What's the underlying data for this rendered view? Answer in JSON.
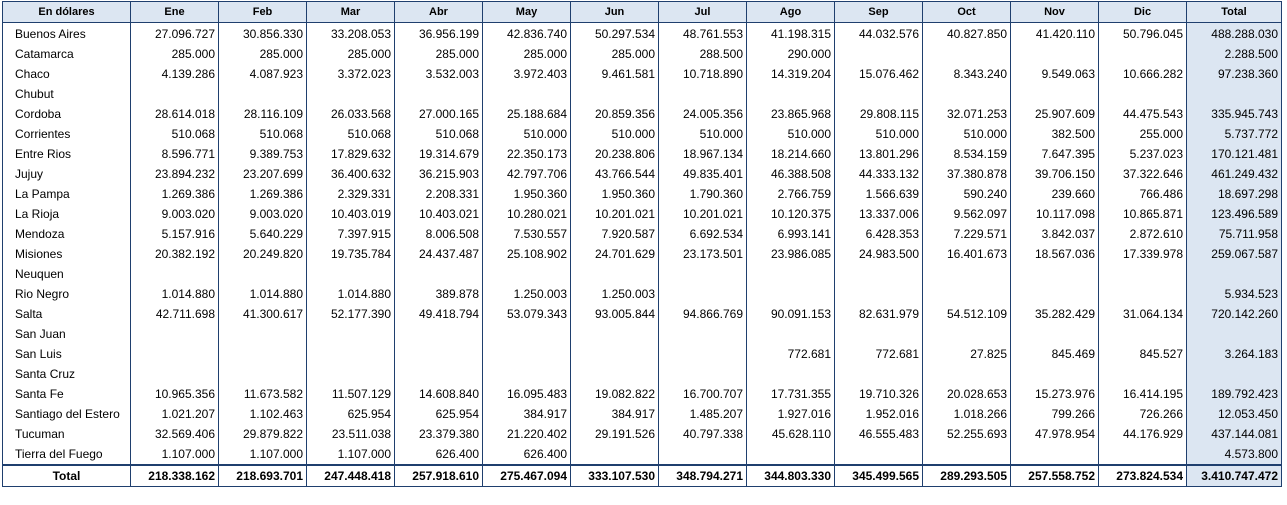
{
  "table": {
    "header_label": "En dólares",
    "months": [
      "Ene",
      "Feb",
      "Mar",
      "Abr",
      "May",
      "Jun",
      "Jul",
      "Ago",
      "Sep",
      "Oct",
      "Nov",
      "Dic"
    ],
    "total_label": "Total",
    "rows": [
      {
        "province": "Buenos Aires",
        "values": [
          "27.096.727",
          "30.856.330",
          "33.208.053",
          "36.956.199",
          "42.836.740",
          "50.297.534",
          "48.761.553",
          "41.198.315",
          "44.032.576",
          "40.827.850",
          "41.420.110",
          "50.796.045"
        ],
        "total": "488.288.030"
      },
      {
        "province": "Catamarca",
        "values": [
          "285.000",
          "285.000",
          "285.000",
          "285.000",
          "285.000",
          "285.000",
          "288.500",
          "290.000",
          "",
          "",
          "",
          ""
        ],
        "total": "2.288.500"
      },
      {
        "province": "Chaco",
        "values": [
          "4.139.286",
          "4.087.923",
          "3.372.023",
          "3.532.003",
          "3.972.403",
          "9.461.581",
          "10.718.890",
          "14.319.204",
          "15.076.462",
          "8.343.240",
          "9.549.063",
          "10.666.282"
        ],
        "total": "97.238.360"
      },
      {
        "province": "Chubut",
        "values": [
          "",
          "",
          "",
          "",
          "",
          "",
          "",
          "",
          "",
          "",
          "",
          ""
        ],
        "total": ""
      },
      {
        "province": "Cordoba",
        "values": [
          "28.614.018",
          "28.116.109",
          "26.033.568",
          "27.000.165",
          "25.188.684",
          "20.859.356",
          "24.005.356",
          "23.865.968",
          "29.808.115",
          "32.071.253",
          "25.907.609",
          "44.475.543"
        ],
        "total": "335.945.743"
      },
      {
        "province": "Corrientes",
        "values": [
          "510.068",
          "510.068",
          "510.068",
          "510.068",
          "510.000",
          "510.000",
          "510.000",
          "510.000",
          "510.000",
          "510.000",
          "382.500",
          "255.000"
        ],
        "total": "5.737.772"
      },
      {
        "province": "Entre Rios",
        "values": [
          "8.596.771",
          "9.389.753",
          "17.829.632",
          "19.314.679",
          "22.350.173",
          "20.238.806",
          "18.967.134",
          "18.214.660",
          "13.801.296",
          "8.534.159",
          "7.647.395",
          "5.237.023"
        ],
        "total": "170.121.481"
      },
      {
        "province": "Jujuy",
        "values": [
          "23.894.232",
          "23.207.699",
          "36.400.632",
          "36.215.903",
          "42.797.706",
          "43.766.544",
          "49.835.401",
          "46.388.508",
          "44.333.132",
          "37.380.878",
          "39.706.150",
          "37.322.646"
        ],
        "total": "461.249.432"
      },
      {
        "province": "La Pampa",
        "values": [
          "1.269.386",
          "1.269.386",
          "2.329.331",
          "2.208.331",
          "1.950.360",
          "1.950.360",
          "1.790.360",
          "2.766.759",
          "1.566.639",
          "590.240",
          "239.660",
          "766.486"
        ],
        "total": "18.697.298"
      },
      {
        "province": "La Rioja",
        "values": [
          "9.003.020",
          "9.003.020",
          "10.403.019",
          "10.403.021",
          "10.280.021",
          "10.201.021",
          "10.201.021",
          "10.120.375",
          "13.337.006",
          "9.562.097",
          "10.117.098",
          "10.865.871"
        ],
        "total": "123.496.589"
      },
      {
        "province": "Mendoza",
        "values": [
          "5.157.916",
          "5.640.229",
          "7.397.915",
          "8.006.508",
          "7.530.557",
          "7.920.587",
          "6.692.534",
          "6.993.141",
          "6.428.353",
          "7.229.571",
          "3.842.037",
          "2.872.610"
        ],
        "total": "75.711.958"
      },
      {
        "province": "Misiones",
        "values": [
          "20.382.192",
          "20.249.820",
          "19.735.784",
          "24.437.487",
          "25.108.902",
          "24.701.629",
          "23.173.501",
          "23.986.085",
          "24.983.500",
          "16.401.673",
          "18.567.036",
          "17.339.978"
        ],
        "total": "259.067.587"
      },
      {
        "province": "Neuquen",
        "values": [
          "",
          "",
          "",
          "",
          "",
          "",
          "",
          "",
          "",
          "",
          "",
          ""
        ],
        "total": ""
      },
      {
        "province": "Rio Negro",
        "values": [
          "1.014.880",
          "1.014.880",
          "1.014.880",
          "389.878",
          "1.250.003",
          "1.250.003",
          "",
          "",
          "",
          "",
          "",
          ""
        ],
        "total": "5.934.523"
      },
      {
        "province": "Salta",
        "values": [
          "42.711.698",
          "41.300.617",
          "52.177.390",
          "49.418.794",
          "53.079.343",
          "93.005.844",
          "94.866.769",
          "90.091.153",
          "82.631.979",
          "54.512.109",
          "35.282.429",
          "31.064.134"
        ],
        "total": "720.142.260"
      },
      {
        "province": "San Juan",
        "values": [
          "",
          "",
          "",
          "",
          "",
          "",
          "",
          "",
          "",
          "",
          "",
          ""
        ],
        "total": ""
      },
      {
        "province": "San Luis",
        "values": [
          "",
          "",
          "",
          "",
          "",
          "",
          "",
          "772.681",
          "772.681",
          "27.825",
          "845.469",
          "845.527"
        ],
        "total": "3.264.183"
      },
      {
        "province": "Santa Cruz",
        "values": [
          "",
          "",
          "",
          "",
          "",
          "",
          "",
          "",
          "",
          "",
          "",
          ""
        ],
        "total": ""
      },
      {
        "province": "Santa Fe",
        "values": [
          "10.965.356",
          "11.673.582",
          "11.507.129",
          "14.608.840",
          "16.095.483",
          "19.082.822",
          "16.700.707",
          "17.731.355",
          "19.710.326",
          "20.028.653",
          "15.273.976",
          "16.414.195"
        ],
        "total": "189.792.423"
      },
      {
        "province": "Santiago del Estero",
        "values": [
          "1.021.207",
          "1.102.463",
          "625.954",
          "625.954",
          "384.917",
          "384.917",
          "1.485.207",
          "1.927.016",
          "1.952.016",
          "1.018.266",
          "799.266",
          "726.266"
        ],
        "total": "12.053.450"
      },
      {
        "province": "Tucuman",
        "values": [
          "32.569.406",
          "29.879.822",
          "23.511.038",
          "23.379.380",
          "21.220.402",
          "29.191.526",
          "40.797.338",
          "45.628.110",
          "46.555.483",
          "52.255.693",
          "47.978.954",
          "44.176.929"
        ],
        "total": "437.144.081"
      },
      {
        "province": "Tierra del Fuego",
        "values": [
          "1.107.000",
          "1.107.000",
          "1.107.000",
          "626.400",
          "626.400",
          "",
          "",
          "",
          "",
          "",
          "",
          ""
        ],
        "total": "4.573.800"
      }
    ],
    "footer": {
      "label": "Total",
      "values": [
        "218.338.162",
        "218.693.701",
        "247.448.418",
        "257.918.610",
        "275.467.094",
        "333.107.530",
        "348.794.271",
        "344.803.330",
        "345.499.565",
        "289.293.505",
        "257.558.752",
        "273.824.534"
      ],
      "total": "3.410.747.472"
    }
  },
  "colors": {
    "header_bg": "#dce6f2",
    "total_column_bg": "#dce6f2",
    "border": "#1f3f6e"
  }
}
